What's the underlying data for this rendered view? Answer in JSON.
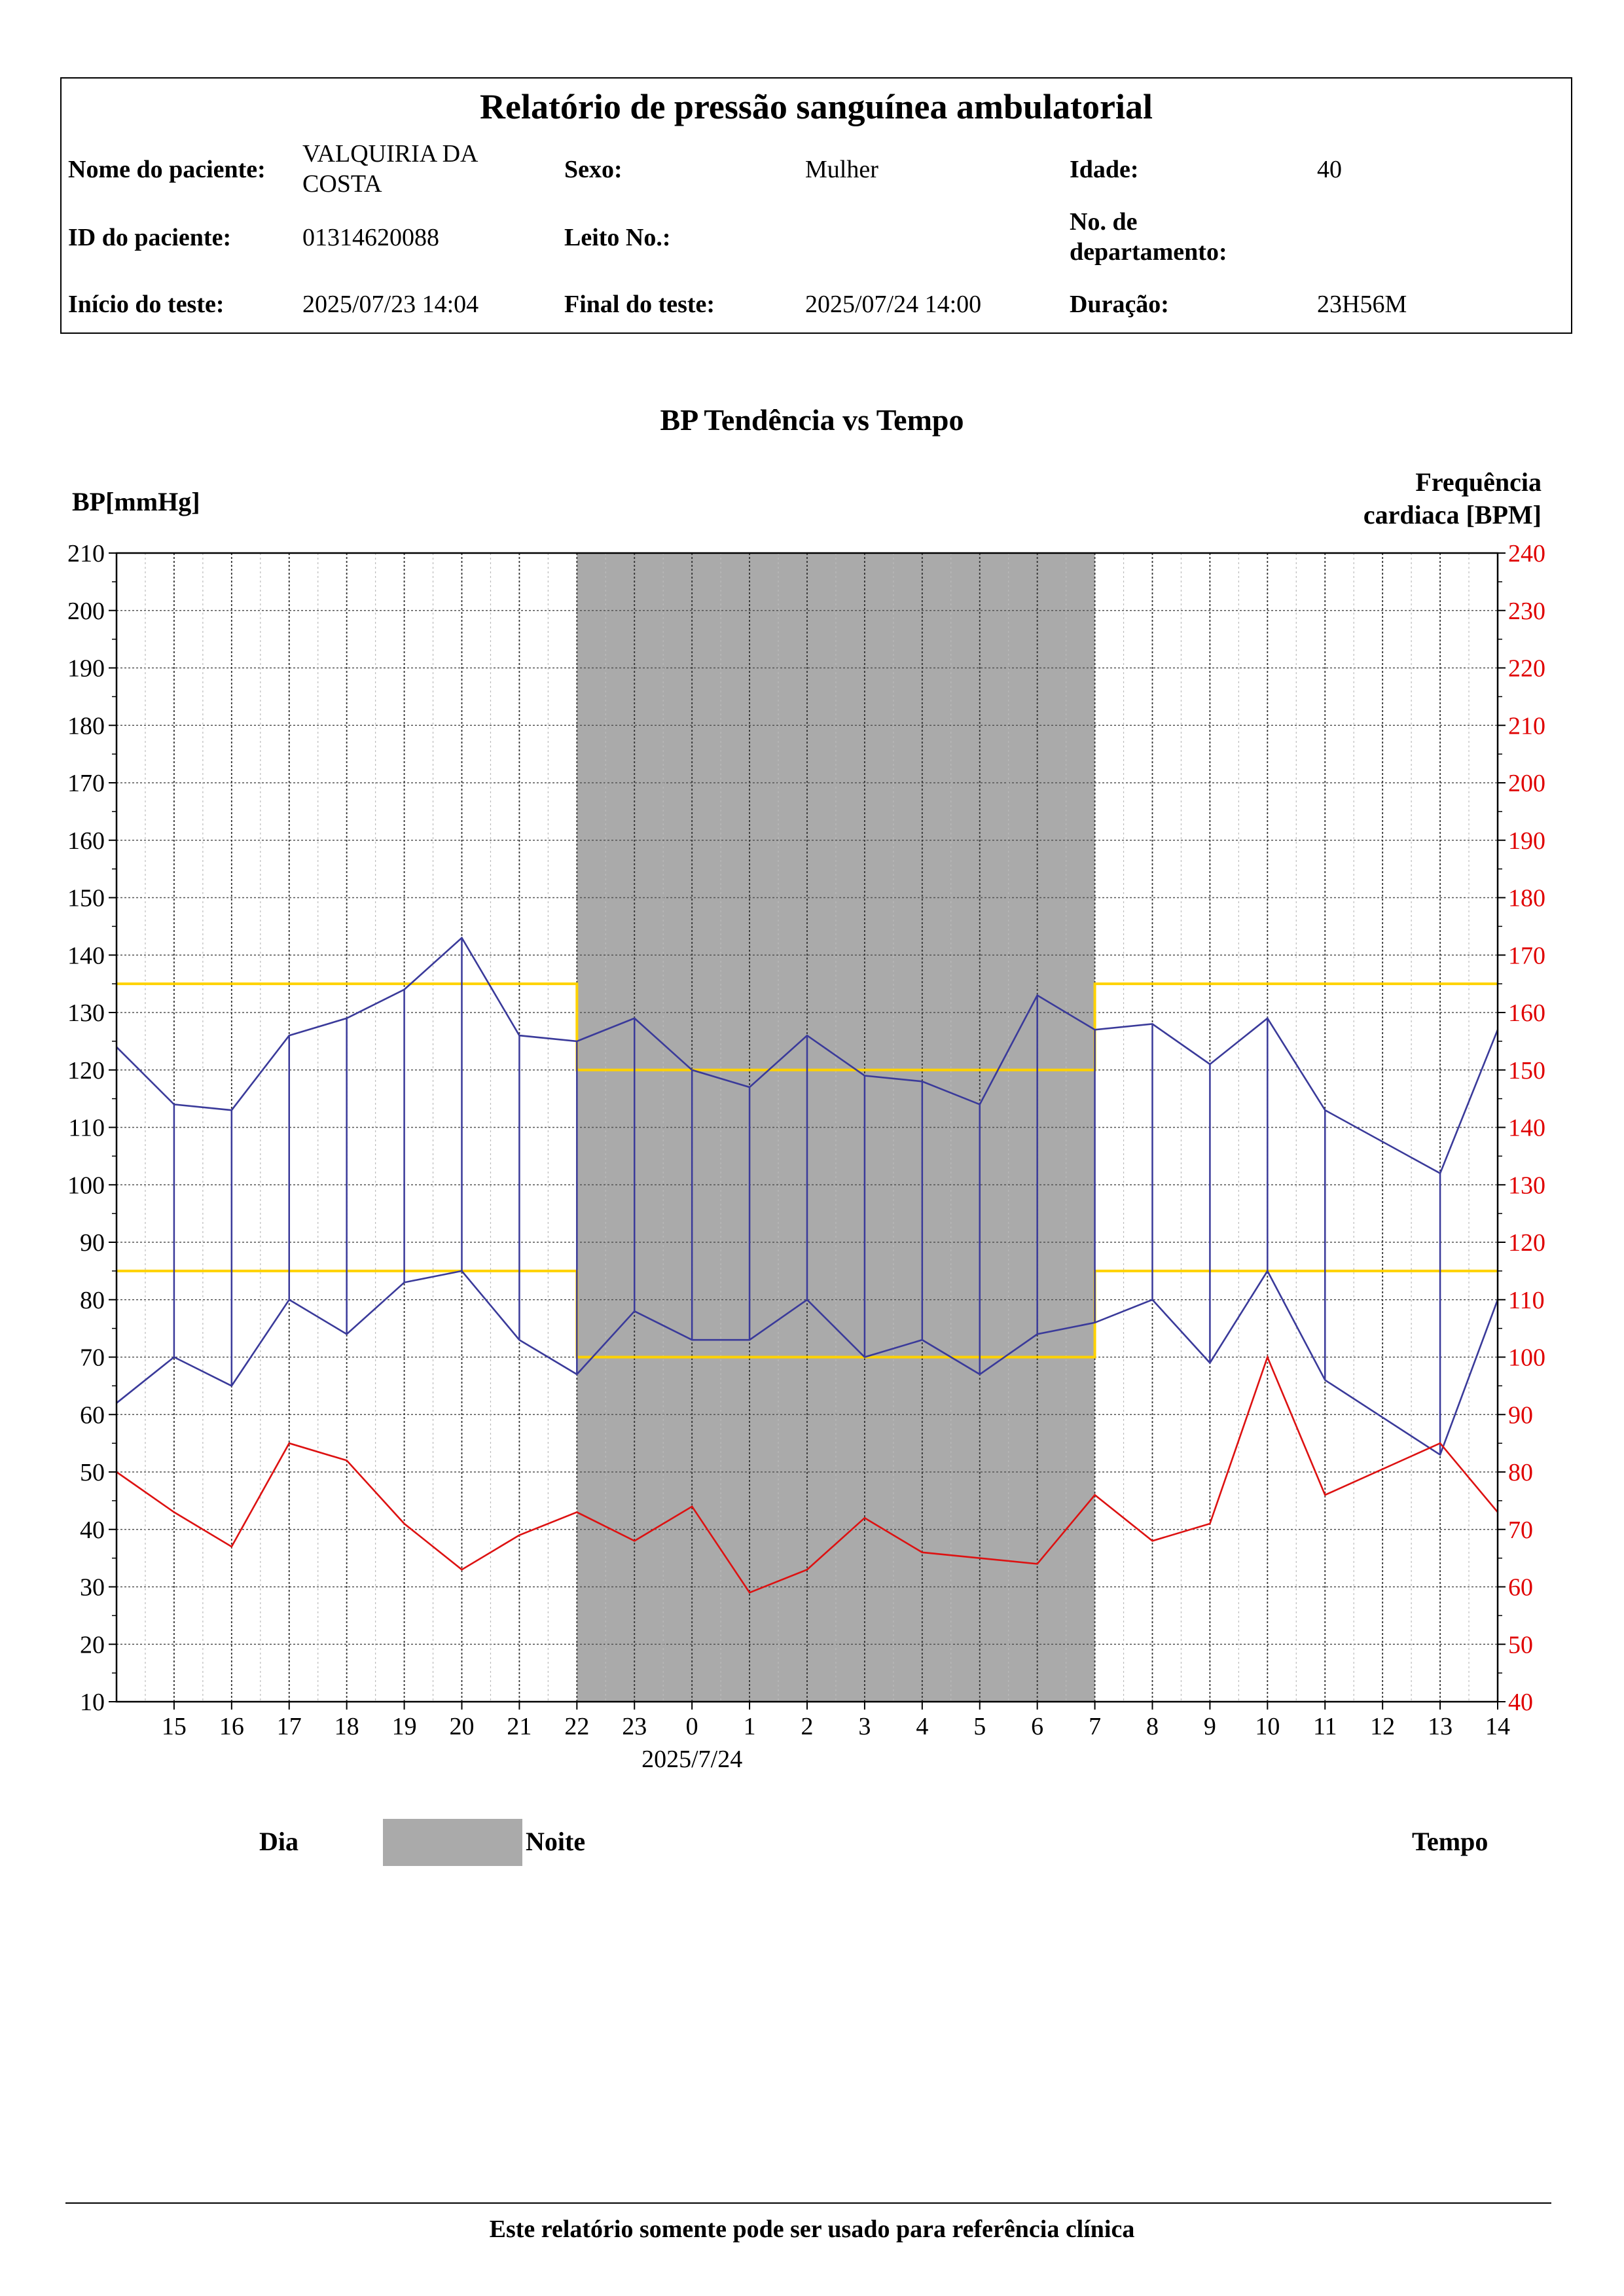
{
  "header": {
    "title": "Relatório de pressão sanguínea ambulatorial",
    "patient_name_label": "Nome do paciente:",
    "patient_name": "VALQUIRIA DA COSTA",
    "sex_label": "Sexo:",
    "sex": "Mulher",
    "age_label": "Idade:",
    "age": "40",
    "patient_id_label": "ID do paciente:",
    "patient_id": "01314620088",
    "bed_label": "Leito No.:",
    "bed": "",
    "dept_label": "No. de departamento:",
    "dept": "",
    "start_label": "Início do teste:",
    "start": "2025/07/23 14:04",
    "end_label": "Final do teste:",
    "end": "2025/07/24 14:00",
    "duration_label": "Duração:",
    "duration": "23H56M"
  },
  "chart_data": {
    "type": "line",
    "title": "BP Tendência vs Tempo",
    "ylabel": "BP[mmHg]",
    "y2label": "Frequência cardiaca [BPM]",
    "ylim": [
      10,
      210
    ],
    "y2lim": [
      40,
      240
    ],
    "xlim": [
      14,
      38
    ],
    "yticks": [
      10,
      20,
      30,
      40,
      50,
      60,
      70,
      80,
      90,
      100,
      110,
      120,
      130,
      140,
      150,
      160,
      170,
      180,
      190,
      200,
      210
    ],
    "y2ticks": [
      40,
      50,
      60,
      70,
      80,
      90,
      100,
      110,
      120,
      130,
      140,
      150,
      160,
      170,
      180,
      190,
      200,
      210,
      220,
      230,
      240
    ],
    "xticks": [
      15,
      16,
      17,
      18,
      19,
      20,
      21,
      22,
      23,
      24,
      25,
      26,
      27,
      28,
      29,
      30,
      31,
      32,
      33,
      34,
      35,
      36,
      37,
      38
    ],
    "xtick_labels": [
      "15",
      "16",
      "17",
      "18",
      "19",
      "20",
      "21",
      "22",
      "23",
      "0",
      "1",
      "2",
      "3",
      "4",
      "5",
      "6",
      "7",
      "8",
      "9",
      "10",
      "11",
      "12",
      "13",
      "14"
    ],
    "date_label": "2025/7/24",
    "night": [
      22,
      31
    ],
    "grid": true,
    "series": [
      {
        "color": "#3a3a9a",
        "axis": "left",
        "x": [
          14,
          15,
          16,
          17,
          18,
          19,
          20,
          21,
          22,
          23,
          24,
          25,
          26,
          27,
          28,
          29,
          30,
          31,
          32,
          33,
          34,
          35,
          37,
          38
        ],
        "values": [
          124,
          114,
          113,
          126,
          129,
          134,
          143,
          126,
          125,
          129,
          120,
          117,
          126,
          119,
          118,
          114,
          133,
          127,
          128,
          121,
          129,
          113,
          102,
          127
        ]
      },
      {
        "color": "#3a3a9a",
        "axis": "left",
        "x": [
          14,
          15,
          16,
          17,
          18,
          19,
          20,
          21,
          22,
          23,
          24,
          25,
          26,
          27,
          28,
          29,
          30,
          31,
          32,
          33,
          34,
          35,
          37,
          38
        ],
        "values": [
          62,
          70,
          65,
          80,
          74,
          83,
          85,
          73,
          67,
          78,
          73,
          73,
          80,
          70,
          73,
          67,
          74,
          76,
          80,
          69,
          85,
          66,
          53,
          80
        ]
      },
      {
        "color": "#dd1111",
        "axis": "right",
        "x": [
          14,
          15,
          16,
          17,
          18,
          19,
          20,
          21,
          22,
          23,
          24,
          25,
          26,
          27,
          28,
          30,
          31,
          32,
          33,
          34,
          35,
          37,
          38
        ],
        "values": [
          80,
          73,
          67,
          85,
          82,
          71,
          63,
          69,
          73,
          68,
          74,
          59,
          63,
          72,
          66,
          64,
          76,
          68,
          71,
          100,
          76,
          85,
          73
        ]
      }
    ],
    "thresholds": {
      "color": "#ffd200",
      "day_systolic": 135,
      "day_diastolic": 85,
      "night_systolic": 120,
      "night_diastolic": 70
    }
  },
  "legend": {
    "day": "Dia",
    "night": "Noite",
    "time": "Tempo",
    "night_color": "#aaaaaa"
  },
  "footer": {
    "text": "Este relatório somente pode ser usado para referência clínica"
  }
}
